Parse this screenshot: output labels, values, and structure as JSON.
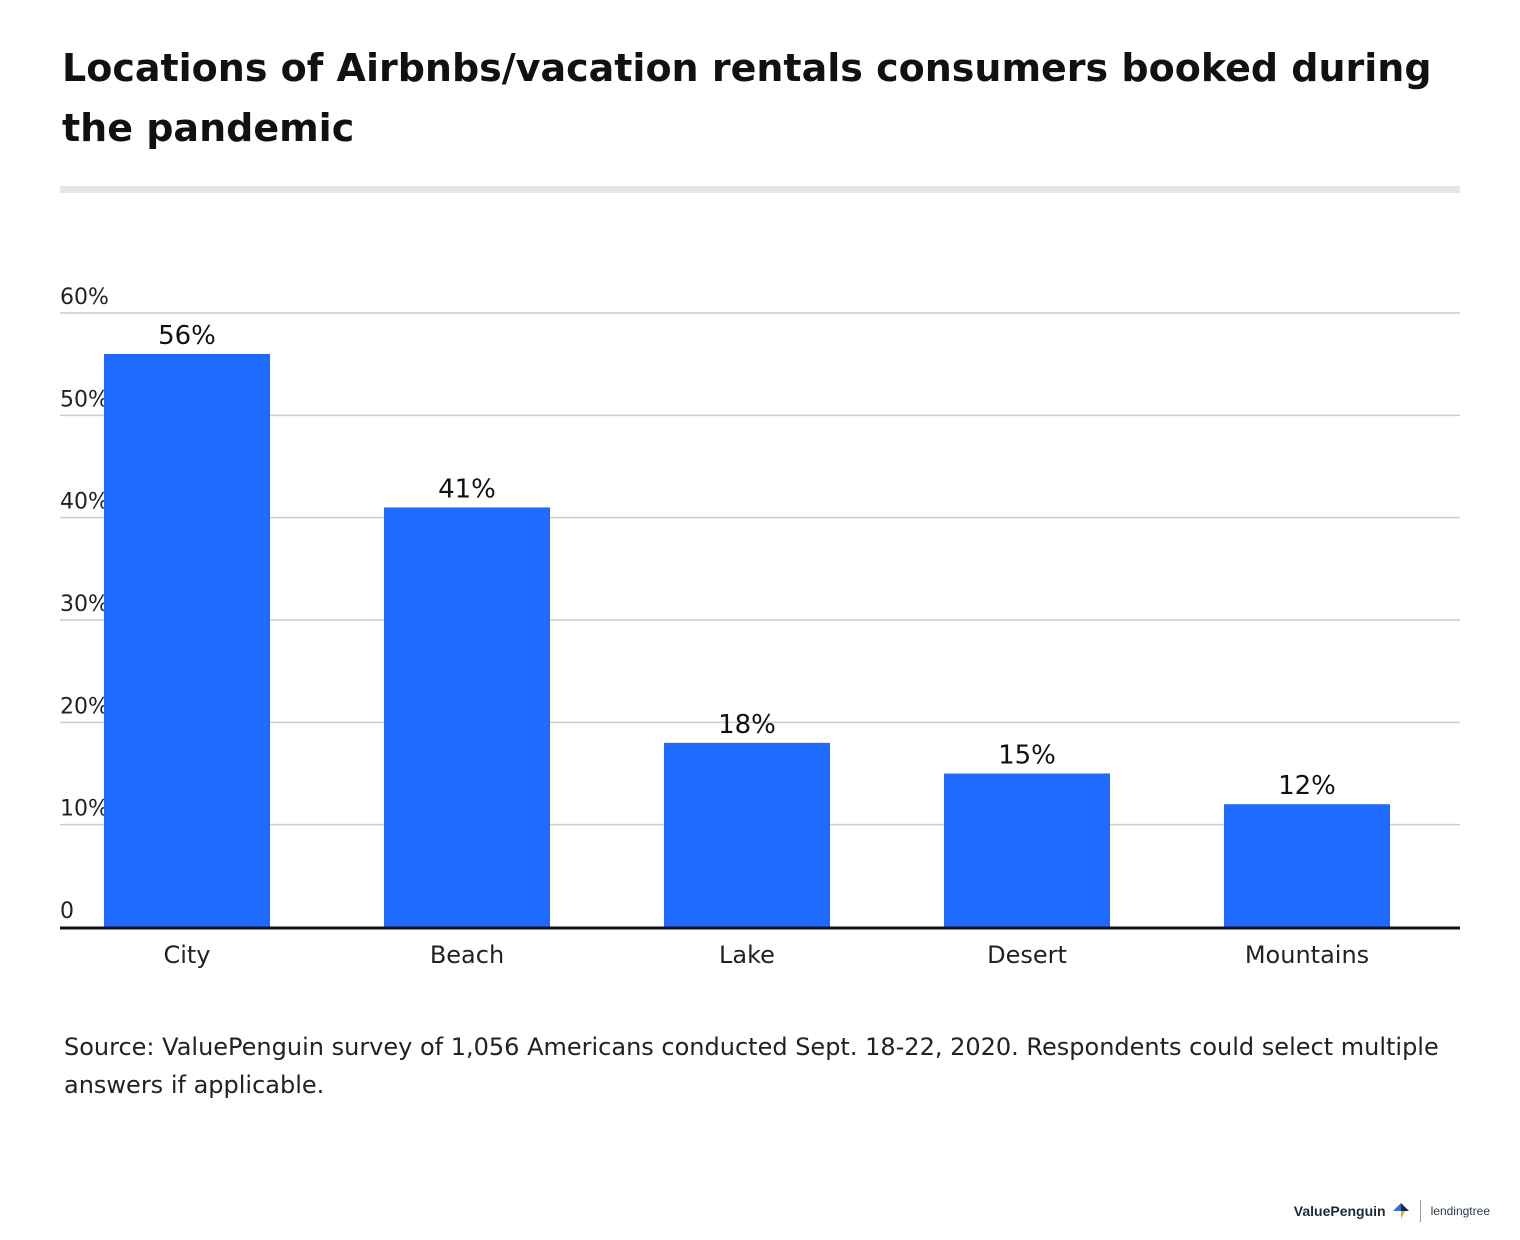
{
  "chart_data": {
    "type": "bar",
    "title": "Locations of Airbnbs/vacation rentals consumers booked during the pandemic",
    "categories": [
      "City",
      "Beach",
      "Lake",
      "Desert",
      "Mountains"
    ],
    "values": [
      56,
      41,
      18,
      15,
      12
    ],
    "data_labels": [
      "56%",
      "41%",
      "18%",
      "15%",
      "12%"
    ],
    "y_ticks": [
      {
        "value": 0,
        "label": "0"
      },
      {
        "value": 10,
        "label": "10%"
      },
      {
        "value": 20,
        "label": "20%"
      },
      {
        "value": 30,
        "label": "30%"
      },
      {
        "value": 40,
        "label": "40%"
      },
      {
        "value": 50,
        "label": "50%"
      },
      {
        "value": 60,
        "label": "60%"
      }
    ],
    "ylim": [
      0,
      60
    ],
    "xlabel": "",
    "ylabel": "",
    "grid": true,
    "bar_color": "#1f6bff"
  },
  "source_note": "Source: ValuePenguin survey of 1,056 Americans conducted Sept. 18-22, 2020. Respondents could select multiple answers if applicable.",
  "footer": {
    "brand_primary": "ValuePenguin",
    "brand_secondary": "lendingtree"
  }
}
